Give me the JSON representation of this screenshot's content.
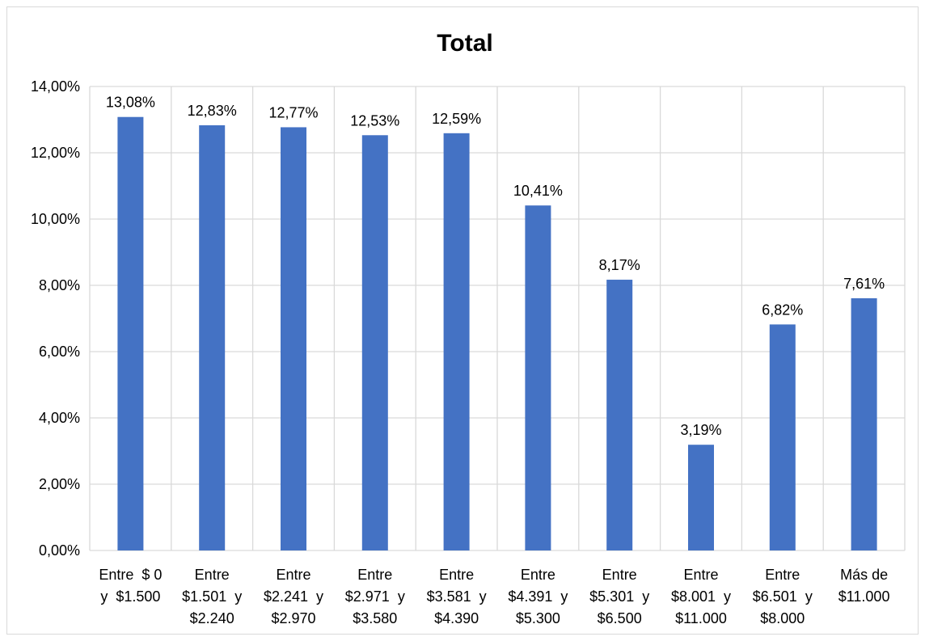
{
  "chart_data": {
    "type": "bar",
    "title": "Total",
    "xlabel": "",
    "ylabel": "",
    "ylim": [
      0,
      14
    ],
    "y_ticks": [
      "0,00%",
      "2,00%",
      "4,00%",
      "6,00%",
      "8,00%",
      "10,00%",
      "12,00%",
      "14,00%"
    ],
    "grid": true,
    "legend": "none",
    "bar_color": "#4472C4",
    "grid_color": "#d9d9d9",
    "categories": [
      [
        "Entre  $ 0",
        "y  $1.500"
      ],
      [
        "Entre",
        "$1.501  y",
        "$2.240"
      ],
      [
        "Entre",
        "$2.241  y",
        "$2.970"
      ],
      [
        "Entre",
        "$2.971  y",
        "$3.580"
      ],
      [
        "Entre",
        "$3.581  y",
        "$4.390"
      ],
      [
        "Entre",
        "$4.391  y",
        "$5.300"
      ],
      [
        "Entre",
        "$5.301  y",
        "$6.500"
      ],
      [
        "Entre",
        "$8.001  y",
        "$11.000"
      ],
      [
        "Entre",
        "$6.501  y",
        "$8.000"
      ],
      [
        "Más de",
        "$11.000"
      ]
    ],
    "values": [
      13.08,
      12.83,
      12.77,
      12.53,
      12.59,
      10.41,
      8.17,
      3.19,
      6.82,
      7.61
    ],
    "data_labels": [
      "13,08%",
      "12,83%",
      "12,77%",
      "12,53%",
      "12,59%",
      "10,41%",
      "8,17%",
      "3,19%",
      "6,82%",
      "7,61%"
    ]
  }
}
